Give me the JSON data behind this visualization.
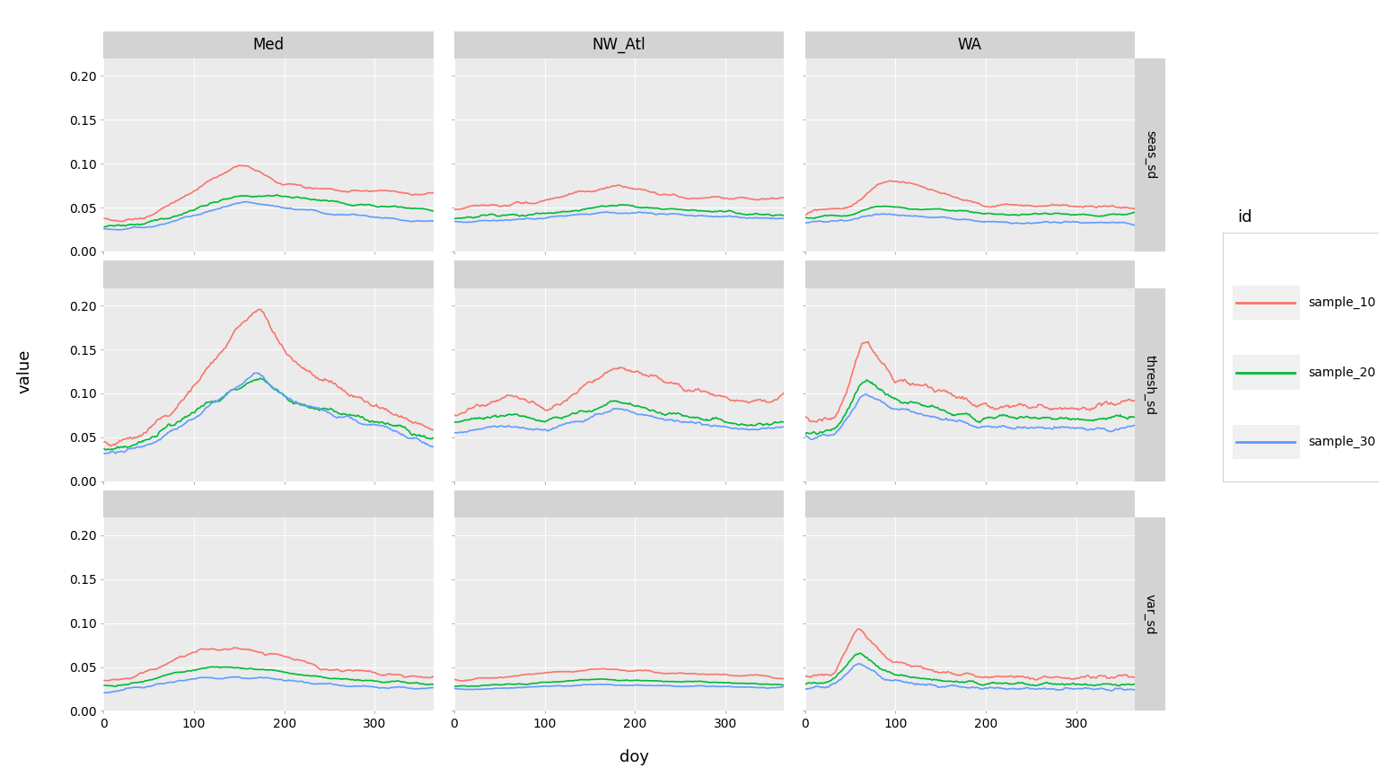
{
  "sites": [
    "Med",
    "NW_Atl",
    "WA"
  ],
  "rows": [
    "seas_sd",
    "thresh_sd",
    "var_sd"
  ],
  "samples": [
    "sample_10",
    "sample_20",
    "sample_30"
  ],
  "colors": {
    "sample_10": "#F8766D",
    "sample_20": "#00BA38",
    "sample_30": "#619CFF"
  },
  "ylim": [
    0.0,
    0.22
  ],
  "yticks": [
    0.0,
    0.05,
    0.1,
    0.15,
    0.2
  ],
  "ytick_labels": [
    "0.00",
    "0.05",
    "0.10",
    "0.15",
    "0.20"
  ],
  "xticks": [
    0,
    100,
    200,
    300
  ],
  "xlabel": "doy",
  "ylabel": "value",
  "legend_title": "id",
  "fig_background": "#FFFFFF",
  "panel_background": "#EBEBEB",
  "strip_background": "#D3D3D3",
  "outer_background": "#FFFFFF",
  "grid_color": "#FFFFFF",
  "line_width": 1.2,
  "figsize": [
    15.36,
    8.65
  ],
  "dpi": 100
}
